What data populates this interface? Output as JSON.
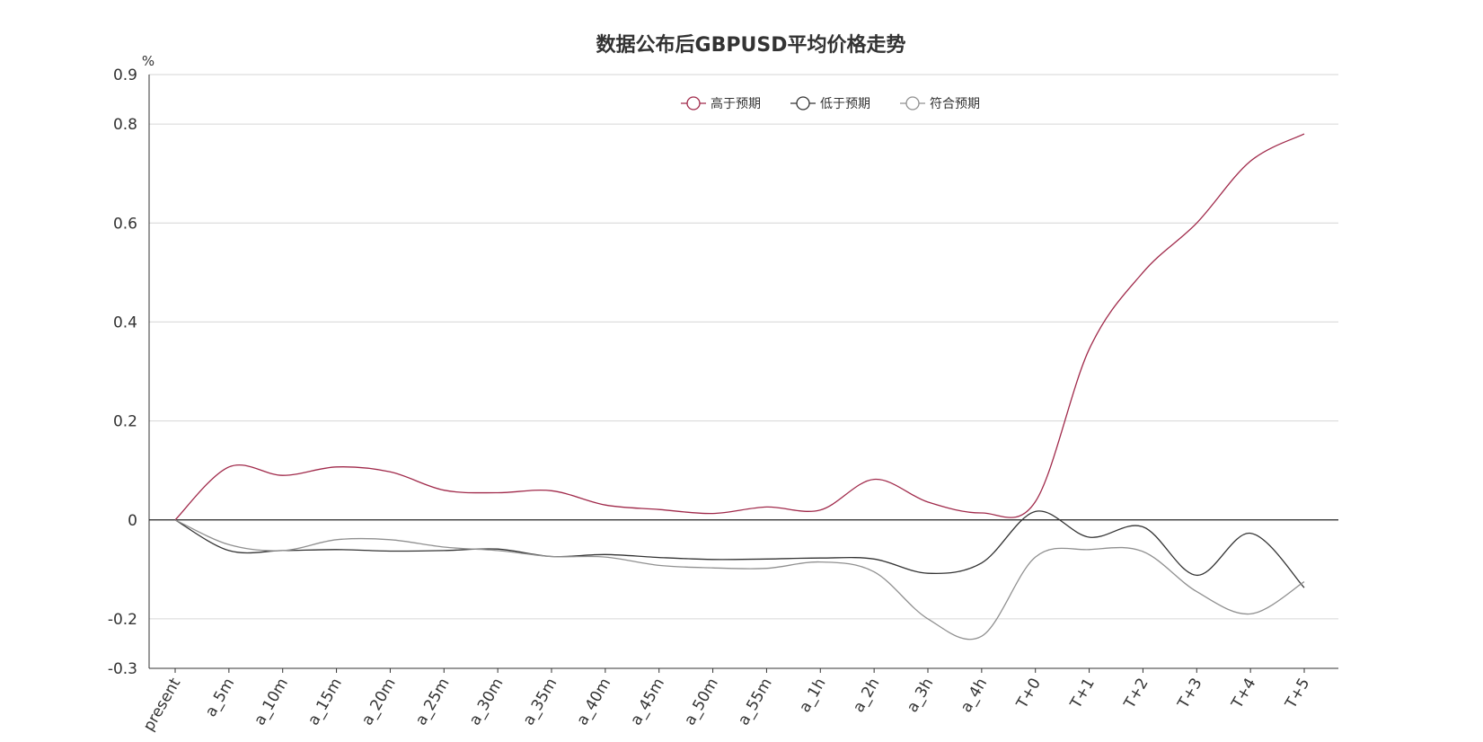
{
  "chart_data": {
    "type": "line",
    "title": "数据公布后GBPUSD平均价格走势",
    "ylabel": "%",
    "xlabel": "",
    "ylim": [
      -0.3,
      0.9
    ],
    "yticks": [
      {
        "value": 0.9,
        "label": "0.9"
      },
      {
        "value": 0.8,
        "label": "0.8"
      },
      {
        "value": 0.6,
        "label": "0.6"
      },
      {
        "value": 0.4,
        "label": "0.4"
      },
      {
        "value": 0.2,
        "label": "0.2"
      },
      {
        "value": 0,
        "label": "0"
      },
      {
        "value": -0.2,
        "label": "-0.2"
      },
      {
        "value": -0.3,
        "label": "-0.3"
      }
    ],
    "grid": true,
    "legend_position": "top-center",
    "categories": [
      "present",
      "a_5m",
      "a_10m",
      "a_15m",
      "a_20m",
      "a_25m",
      "a_30m",
      "a_35m",
      "a_40m",
      "a_45m",
      "a_50m",
      "a_55m",
      "a_1h",
      "a_2h",
      "a_3h",
      "a_4h",
      "T+0",
      "T+1",
      "T+2",
      "T+3",
      "T+4",
      "T+5"
    ],
    "series": [
      {
        "name": "高于预期",
        "color": "#a0294a",
        "values": [
          0,
          0.107,
          0.09,
          0.107,
          0.097,
          0.06,
          0.055,
          0.059,
          0.03,
          0.021,
          0.013,
          0.026,
          0.02,
          0.082,
          0.036,
          0.014,
          0.037,
          0.345,
          0.5,
          0.6,
          0.725,
          0.78
        ]
      },
      {
        "name": "低于预期",
        "color": "#333333",
        "values": [
          0,
          -0.062,
          -0.062,
          -0.06,
          -0.063,
          -0.062,
          -0.059,
          -0.074,
          -0.07,
          -0.076,
          -0.08,
          -0.079,
          -0.077,
          -0.079,
          -0.108,
          -0.087,
          0.017,
          -0.035,
          -0.014,
          -0.112,
          -0.027,
          -0.137
        ]
      },
      {
        "name": "符合预期",
        "color": "#909090",
        "values": [
          0,
          -0.05,
          -0.062,
          -0.04,
          -0.04,
          -0.055,
          -0.062,
          -0.074,
          -0.075,
          -0.092,
          -0.097,
          -0.098,
          -0.085,
          -0.105,
          -0.2,
          -0.235,
          -0.075,
          -0.06,
          -0.064,
          -0.145,
          -0.19,
          -0.125
        ]
      }
    ]
  }
}
